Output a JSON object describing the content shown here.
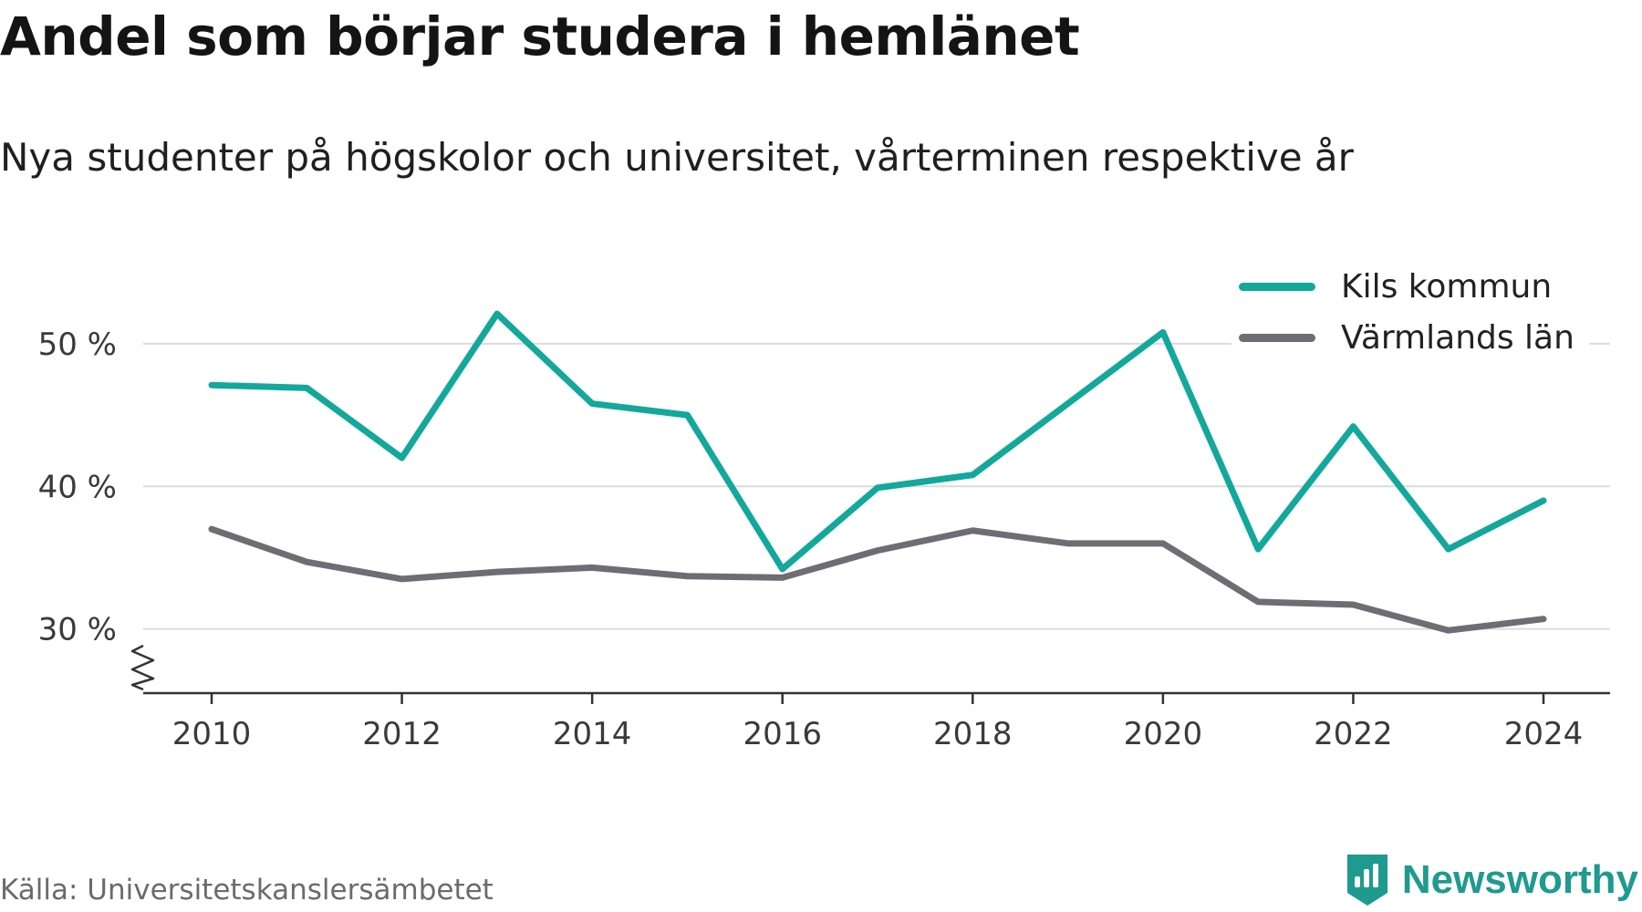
{
  "title": "Andel som börjar studera i hemlänet",
  "subtitle": "Nya studenter på högskolor och universitet, vårterminen respektive år",
  "source": "Källa: Universitetskanslersämbetet",
  "brand": {
    "name": "Newsworthy",
    "icon": "newsworthy-logo-icon",
    "color": "#1f9a8f"
  },
  "colors": {
    "grid": "#dcdcdc",
    "axis": "#333333"
  },
  "chart_data": {
    "type": "line",
    "title": "Andel som börjar studera i hemlänet",
    "subtitle": "Nya studenter på högskolor och universitet, vårterminen respektive år",
    "x": [
      2010,
      2011,
      2012,
      2013,
      2014,
      2015,
      2016,
      2017,
      2018,
      2019,
      2020,
      2021,
      2022,
      2023,
      2024
    ],
    "xticks": [
      "2010",
      "2012",
      "2014",
      "2016",
      "2018",
      "2020",
      "2022",
      "2024"
    ],
    "yticks": [
      "30 %",
      "40 %",
      "50 %"
    ],
    "ylim": [
      25.5,
      53
    ],
    "y_axis_break": true,
    "grid": true,
    "legend_position": "top-right",
    "series": [
      {
        "name": "Kils kommun",
        "color": "#13a89b",
        "values": [
          47.1,
          46.9,
          42.0,
          52.1,
          45.8,
          45.0,
          34.2,
          39.9,
          40.8,
          45.8,
          50.8,
          35.6,
          44.2,
          35.6,
          39.0
        ]
      },
      {
        "name": "Värmlands län",
        "color": "#6e6d73",
        "values": [
          37.0,
          34.7,
          33.5,
          34.0,
          34.3,
          33.7,
          33.6,
          35.5,
          36.9,
          36.0,
          36.0,
          31.9,
          31.7,
          29.9,
          30.7
        ]
      }
    ]
  }
}
